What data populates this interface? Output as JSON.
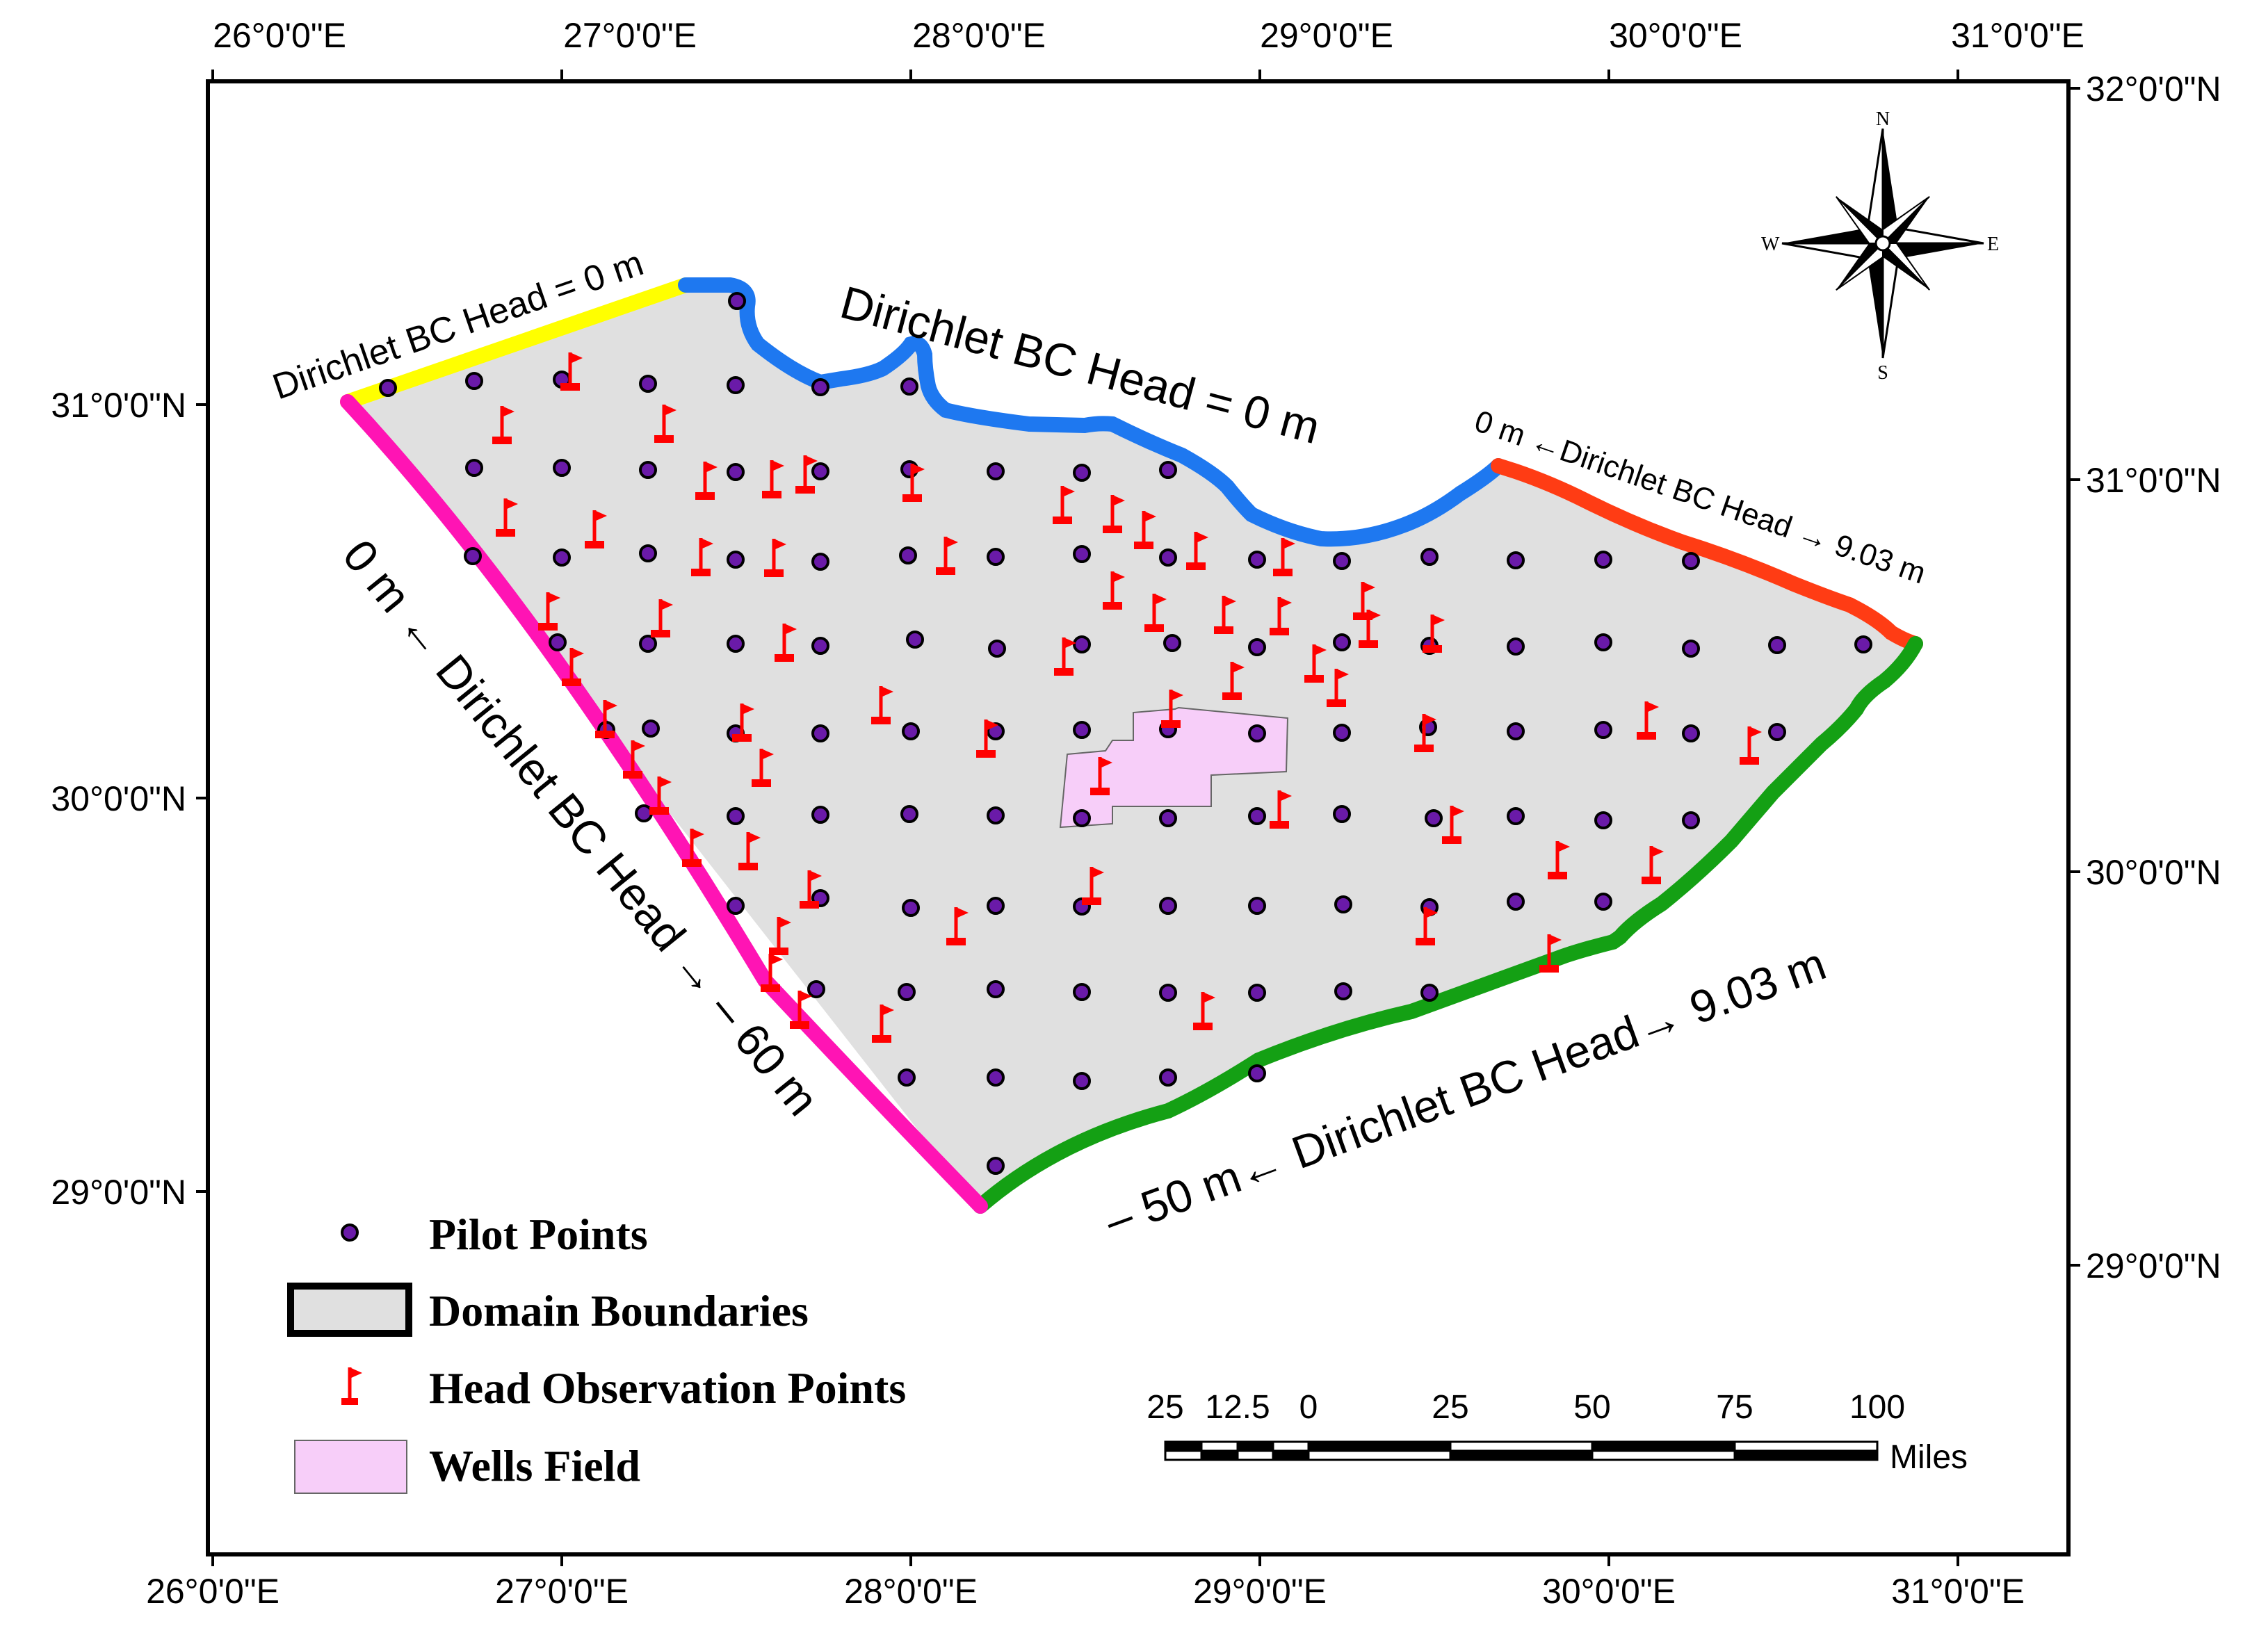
{
  "lon_ticks": [
    "26°0'0\"E",
    "27°0'0\"E",
    "28°0'0\"E",
    "29°0'0\"E",
    "30°0'0\"E",
    "31°0'0\"E"
  ],
  "lat_ticks_left": [
    "31°0'0\"N",
    "30°0'0\"N",
    "29°0'0\"N"
  ],
  "lat_ticks_right": [
    "32°0'0\"N",
    "31°0'0\"N",
    "30°0'0\"N",
    "29°0'0\"N"
  ],
  "boundary_labels": {
    "north_yellow": "Dirichlet BC Head = 0 m",
    "north_blue": "Dirichlet BC Head = 0 m",
    "northeast_red": "0 m ←Dirichlet BC Head →  9.03 m",
    "west_magenta": "0 m ← Dirichlet BC Head → – 60 m",
    "south_green": "– 50 m← Dirichlet BC Head→  9.03 m"
  },
  "colors": {
    "yellow_boundary": "#ffff00",
    "blue_boundary": "#1e78f0",
    "red_boundary": "#ff3c14",
    "magenta_boundary": "#ff14b4",
    "green_boundary": "#14a014",
    "domain_fill": "#e0e0e0",
    "wells_fill": "#f7cef9",
    "pilot_point": "#6a1aa8",
    "observation_flag": "#ff0000"
  },
  "legend": {
    "items": [
      {
        "label": "Pilot Points",
        "icon": "pilot-point-icon"
      },
      {
        "label": "Domain Boundaries",
        "icon": "domain-boundary-icon"
      },
      {
        "label": "Head Observation Points",
        "icon": "red-flag-icon"
      },
      {
        "label": "Wells Field",
        "icon": "wells-field-icon"
      }
    ]
  },
  "scale_bar": {
    "labels": [
      "25",
      "12.5",
      "0",
      "25",
      "50",
      "75",
      "100"
    ],
    "unit": "Miles"
  },
  "compass": {
    "n": "N",
    "s": "S",
    "e": "E",
    "w": "W"
  }
}
